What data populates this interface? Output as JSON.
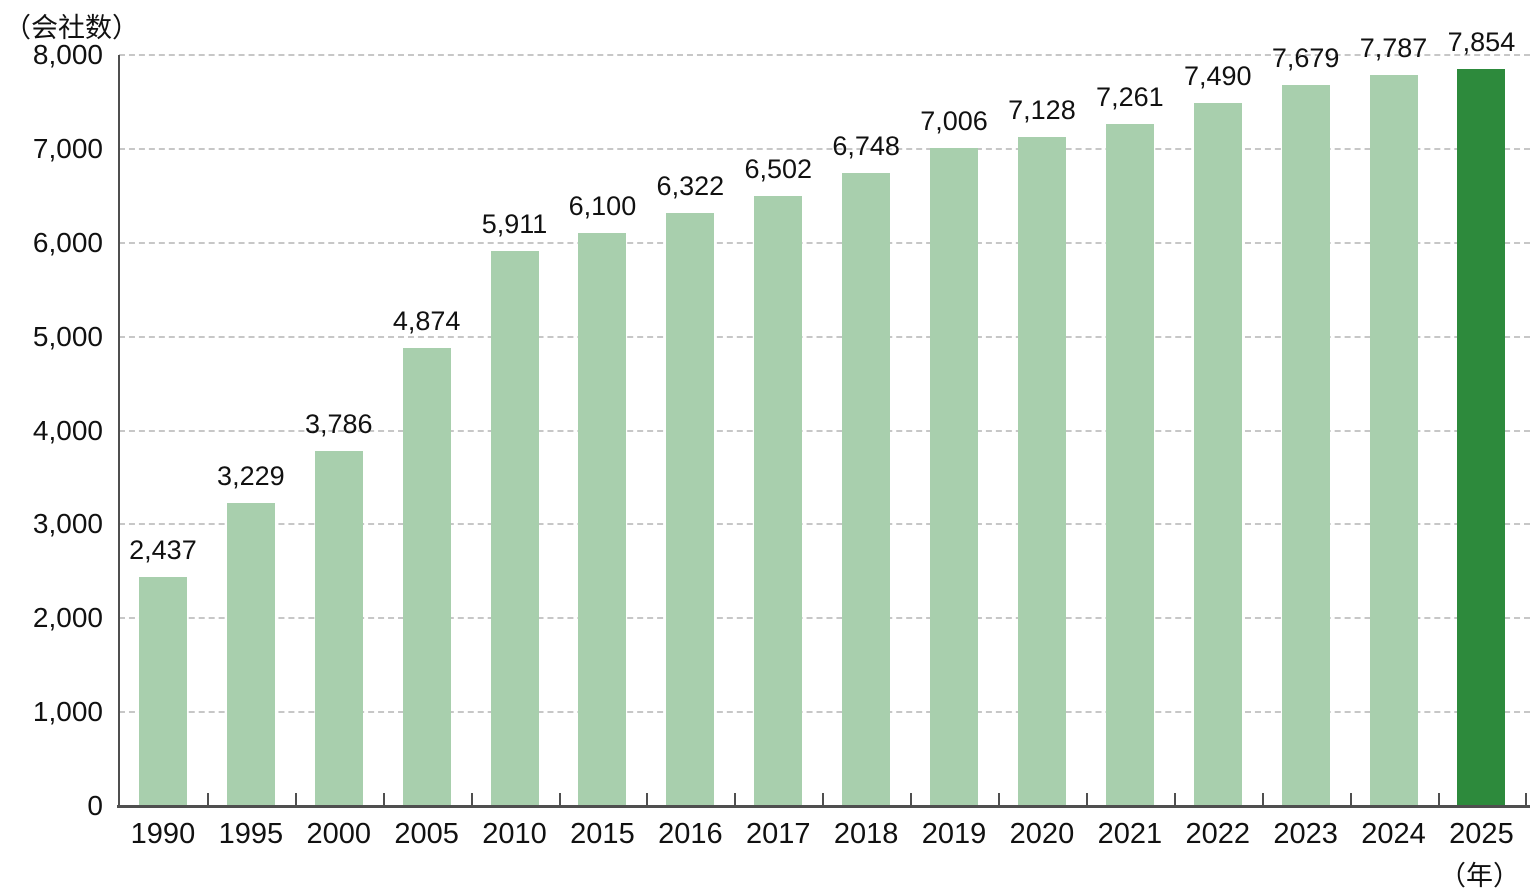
{
  "chart_data": {
    "type": "bar",
    "title": "",
    "y_axis_title": "（会社数）",
    "x_axis_unit": "（年）",
    "categories": [
      "1990",
      "1995",
      "2000",
      "2005",
      "2010",
      "2015",
      "2016",
      "2017",
      "2018",
      "2019",
      "2020",
      "2021",
      "2022",
      "2023",
      "2024",
      "2025"
    ],
    "values": [
      2437,
      3229,
      3786,
      4874,
      5911,
      6100,
      6322,
      6502,
      6748,
      7006,
      7128,
      7261,
      7490,
      7679,
      7787,
      7854
    ],
    "value_labels": [
      "2,437",
      "3,229",
      "3,786",
      "4,874",
      "5,911",
      "6,100",
      "6,322",
      "6,502",
      "6,748",
      "7,006",
      "7,128",
      "7,261",
      "7,490",
      "7,679",
      "7,787",
      "7,854"
    ],
    "ylim": [
      0,
      8000
    ],
    "y_tick_step": 1000,
    "y_tick_labels": [
      "0",
      "1,000",
      "2,000",
      "3,000",
      "4,000",
      "5,000",
      "6,000",
      "7,000",
      "8,000"
    ],
    "grid": "horizontal-dashed",
    "legend": "none",
    "highlight_index": 15,
    "colors": {
      "bar_default": "#a8cfad",
      "bar_highlight": "#2d8a3c",
      "gridline": "#c7c7c7",
      "axis": "#4f4f4f",
      "text": "#111111",
      "background": "#ffffff"
    }
  }
}
